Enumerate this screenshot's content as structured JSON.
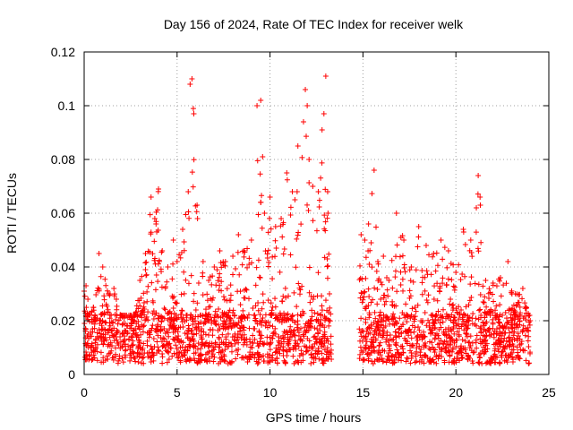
{
  "chart_data": {
    "type": "scatter",
    "title": "Day 156 of 2024, Rate Of TEC Index for receiver welk",
    "xlabel": "GPS time / hours",
    "ylabel": "ROTI / TECUs",
    "xlim": [
      0,
      25
    ],
    "ylim": [
      0,
      0.12
    ],
    "x_ticks": [
      0,
      5,
      10,
      15,
      20,
      25
    ],
    "x_tick_labels": [
      "0",
      "5",
      "10",
      "15",
      "20",
      "25"
    ],
    "y_ticks": [
      0,
      0.02,
      0.04,
      0.06,
      0.08,
      0.1,
      0.12
    ],
    "y_tick_labels": [
      "0",
      "0.02",
      "0.04",
      "0.06",
      "0.08",
      "0.1",
      "0.12"
    ],
    "grid": true,
    "marker": "+",
    "marker_color": "#ff0000",
    "data_gap_hours": [
      13.3,
      14.8
    ],
    "series": [
      {
        "name": "ROTI",
        "x": [
          0.0,
          0.1,
          0.2,
          0.3,
          0.5,
          0.8,
          1.0,
          1.3,
          1.6,
          2.0,
          2.3,
          2.7,
          3.0,
          3.3,
          3.6,
          3.8,
          4.0,
          4.2,
          4.5,
          4.8,
          5.0,
          5.3,
          5.6,
          5.7,
          5.8,
          5.9,
          6.1,
          6.4,
          6.7,
          7.0,
          7.3,
          7.6,
          8.0,
          8.3,
          8.6,
          9.0,
          9.3,
          9.5,
          9.6,
          9.7,
          10.0,
          10.3,
          10.6,
          10.9,
          11.2,
          11.5,
          11.8,
          11.9,
          12.0,
          12.1,
          12.3,
          12.6,
          12.8,
          12.9,
          13.0,
          13.1,
          13.2,
          14.9,
          15.1,
          15.3,
          15.6,
          15.8,
          16.1,
          16.4,
          16.8,
          17.2,
          17.6,
          18.0,
          18.4,
          18.8,
          19.2,
          19.6,
          20.0,
          20.4,
          20.8,
          21.1,
          21.2,
          21.3,
          21.6,
          22.0,
          22.4,
          22.8,
          23.2,
          23.6,
          24.0
        ],
        "y": [
          0.031,
          0.033,
          0.028,
          0.022,
          0.025,
          0.045,
          0.04,
          0.03,
          0.032,
          0.022,
          0.018,
          0.02,
          0.035,
          0.045,
          0.066,
          0.058,
          0.069,
          0.046,
          0.04,
          0.05,
          0.042,
          0.054,
          0.068,
          0.108,
          0.11,
          0.097,
          0.058,
          0.042,
          0.035,
          0.04,
          0.046,
          0.042,
          0.044,
          0.052,
          0.046,
          0.05,
          0.1,
          0.102,
          0.081,
          0.06,
          0.066,
          0.055,
          0.058,
          0.075,
          0.068,
          0.085,
          0.094,
          0.106,
          0.1,
          0.08,
          0.07,
          0.068,
          0.091,
          0.097,
          0.111,
          0.068,
          0.03,
          0.052,
          0.05,
          0.056,
          0.076,
          0.042,
          0.044,
          0.035,
          0.06,
          0.05,
          0.04,
          0.055,
          0.048,
          0.045,
          0.05,
          0.046,
          0.038,
          0.054,
          0.05,
          0.062,
          0.074,
          0.066,
          0.035,
          0.034,
          0.036,
          0.042,
          0.03,
          0.032,
          0.02
        ],
        "baseline_range": [
          0.004,
          0.022
        ]
      }
    ]
  }
}
